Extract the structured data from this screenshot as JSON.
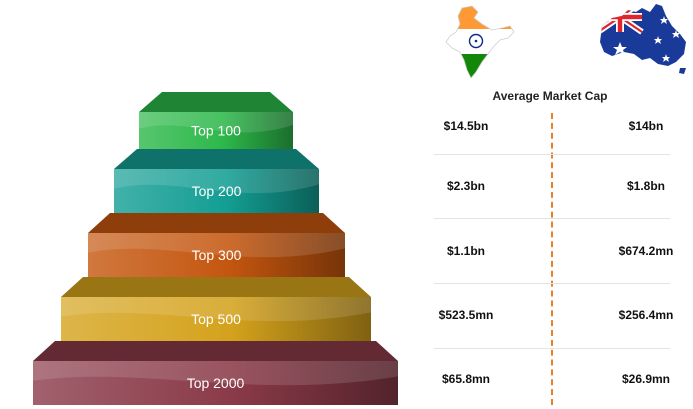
{
  "header": {
    "title": "Average Market Cap"
  },
  "countries": [
    {
      "name": "India",
      "icon": "india-map-icon"
    },
    {
      "name": "Australia",
      "icon": "australia-map-icon"
    }
  ],
  "chart_data": {
    "type": "table",
    "title": "Average Market Cap",
    "categories": [
      "Top 100",
      "Top 200",
      "Top 300",
      "Top 500",
      "Top 2000"
    ],
    "tier_colors": [
      "#2db84a",
      "#139e93",
      "#c4560f",
      "#d4a21c",
      "#8a3a48"
    ],
    "series": [
      {
        "values": [
          14.5,
          2.3,
          1.1,
          0.5235,
          0.0658
        ],
        "labels": [
          "$14.5bn",
          "$2.3bn",
          "$1.1bn",
          "$523.5mn",
          "$65.8mn"
        ]
      },
      {
        "values": [
          14,
          1.8,
          0.6742,
          0.2564,
          0.0269
        ],
        "labels": [
          "$14bn",
          "$1.8bn",
          "$674.2mn",
          "$256.4mn",
          "$26.9mn"
        ]
      }
    ]
  },
  "colors": {
    "divider": "#e8812a",
    "india_saffron": "#ff9933",
    "india_green": "#138808",
    "aus_blue": "#1a3a9a",
    "aus_red": "#e0252d"
  }
}
